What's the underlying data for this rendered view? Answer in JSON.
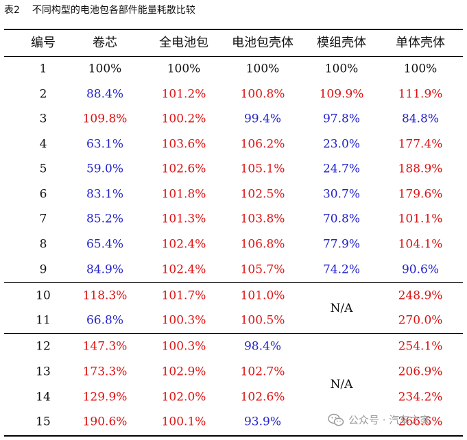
{
  "caption": {
    "number": "表2",
    "title": "不同构型的电池包各部件能量耗散比较"
  },
  "columns": [
    "编号",
    "卷芯",
    "全电池包",
    "电池包壳体",
    "模组壳体",
    "单体壳体"
  ],
  "na_label": "N/A",
  "rows": [
    {
      "id": "1",
      "cells": [
        {
          "v": "100%",
          "c": "black"
        },
        {
          "v": "100%",
          "c": "black"
        },
        {
          "v": "100%",
          "c": "black"
        },
        {
          "v": "100%",
          "c": "black"
        },
        {
          "v": "100%",
          "c": "black"
        }
      ]
    },
    {
      "id": "2",
      "cells": [
        {
          "v": "88.4%",
          "c": "blue"
        },
        {
          "v": "101.2%",
          "c": "red"
        },
        {
          "v": "100.8%",
          "c": "red"
        },
        {
          "v": "109.9%",
          "c": "red"
        },
        {
          "v": "111.9%",
          "c": "red"
        }
      ]
    },
    {
      "id": "3",
      "cells": [
        {
          "v": "109.8%",
          "c": "red"
        },
        {
          "v": "100.2%",
          "c": "red"
        },
        {
          "v": "99.4%",
          "c": "blue"
        },
        {
          "v": "97.8%",
          "c": "blue"
        },
        {
          "v": "84.8%",
          "c": "blue"
        }
      ]
    },
    {
      "id": "4",
      "cells": [
        {
          "v": "63.1%",
          "c": "blue"
        },
        {
          "v": "103.6%",
          "c": "red"
        },
        {
          "v": "106.2%",
          "c": "red"
        },
        {
          "v": "23.0%",
          "c": "blue"
        },
        {
          "v": "177.4%",
          "c": "red"
        }
      ]
    },
    {
      "id": "5",
      "cells": [
        {
          "v": "59.0%",
          "c": "blue"
        },
        {
          "v": "102.6%",
          "c": "red"
        },
        {
          "v": "105.1%",
          "c": "red"
        },
        {
          "v": "24.7%",
          "c": "blue"
        },
        {
          "v": "188.9%",
          "c": "red"
        }
      ]
    },
    {
      "id": "6",
      "cells": [
        {
          "v": "83.1%",
          "c": "blue"
        },
        {
          "v": "101.8%",
          "c": "red"
        },
        {
          "v": "102.5%",
          "c": "red"
        },
        {
          "v": "30.7%",
          "c": "blue"
        },
        {
          "v": "179.6%",
          "c": "red"
        }
      ]
    },
    {
      "id": "7",
      "cells": [
        {
          "v": "85.2%",
          "c": "blue"
        },
        {
          "v": "101.3%",
          "c": "red"
        },
        {
          "v": "103.8%",
          "c": "red"
        },
        {
          "v": "70.8%",
          "c": "blue"
        },
        {
          "v": "101.1%",
          "c": "red"
        }
      ]
    },
    {
      "id": "8",
      "cells": [
        {
          "v": "65.4%",
          "c": "blue"
        },
        {
          "v": "102.4%",
          "c": "red"
        },
        {
          "v": "106.8%",
          "c": "red"
        },
        {
          "v": "77.9%",
          "c": "blue"
        },
        {
          "v": "104.1%",
          "c": "red"
        }
      ]
    },
    {
      "id": "9",
      "cells": [
        {
          "v": "84.9%",
          "c": "blue"
        },
        {
          "v": "102.4%",
          "c": "red"
        },
        {
          "v": "105.7%",
          "c": "red"
        },
        {
          "v": "74.2%",
          "c": "blue"
        },
        {
          "v": "90.6%",
          "c": "blue"
        }
      ]
    },
    {
      "id": "10",
      "cells": [
        {
          "v": "118.3%",
          "c": "red"
        },
        {
          "v": "101.7%",
          "c": "red"
        },
        {
          "v": "101.0%",
          "c": "red"
        },
        null,
        {
          "v": "248.9%",
          "c": "red"
        }
      ]
    },
    {
      "id": "11",
      "cells": [
        {
          "v": "66.8%",
          "c": "blue"
        },
        {
          "v": "100.3%",
          "c": "red"
        },
        {
          "v": "100.5%",
          "c": "red"
        },
        null,
        {
          "v": "270.0%",
          "c": "red"
        }
      ]
    },
    {
      "id": "12",
      "cells": [
        {
          "v": "147.3%",
          "c": "red"
        },
        {
          "v": "100.3%",
          "c": "red"
        },
        {
          "v": "98.4%",
          "c": "blue"
        },
        null,
        {
          "v": "254.1%",
          "c": "red"
        }
      ]
    },
    {
      "id": "13",
      "cells": [
        {
          "v": "173.3%",
          "c": "red"
        },
        {
          "v": "102.9%",
          "c": "red"
        },
        {
          "v": "102.7%",
          "c": "red"
        },
        null,
        {
          "v": "206.9%",
          "c": "red"
        }
      ]
    },
    {
      "id": "14",
      "cells": [
        {
          "v": "129.9%",
          "c": "red"
        },
        {
          "v": "102.0%",
          "c": "red"
        },
        {
          "v": "102.6%",
          "c": "red"
        },
        null,
        {
          "v": "234.2%",
          "c": "red"
        }
      ]
    },
    {
      "id": "15",
      "cells": [
        {
          "v": "190.6%",
          "c": "red"
        },
        {
          "v": "100.1%",
          "c": "red"
        },
        {
          "v": "93.9%",
          "c": "blue"
        },
        null,
        {
          "v": "266.6%",
          "c": "red"
        }
      ]
    }
  ],
  "colors": {
    "black": "#111111",
    "blue": "#2222cc",
    "red": "#dd1111"
  },
  "watermark": {
    "text": "公众号 · 汽车之家",
    "icon": "wechat-icon"
  }
}
